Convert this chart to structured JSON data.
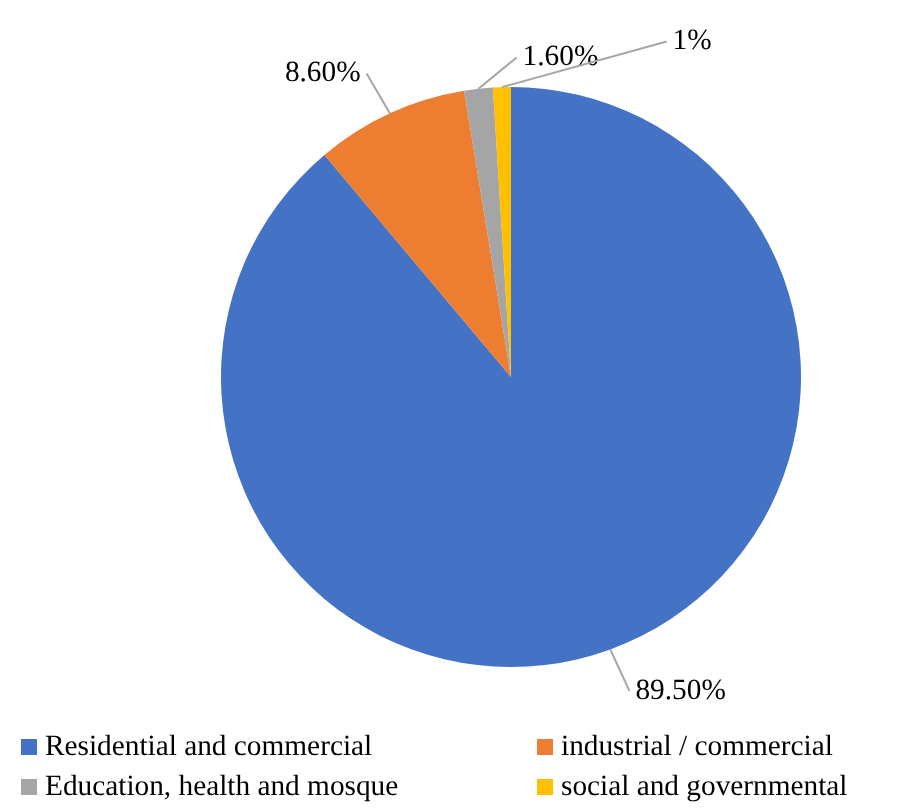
{
  "chart_data": {
    "type": "pie",
    "categories": [
      "Residential and commercial",
      "industrial / commercial",
      "Education, health and mosque",
      "social and governmental"
    ],
    "values": [
      89.5,
      8.6,
      1.6,
      1
    ],
    "colors": [
      "#4472c4",
      "#ed7d31",
      "#a5a5a5",
      "#ffc000"
    ],
    "value_labels": [
      "89.50%",
      "8.60%",
      "1.60%",
      "1%"
    ],
    "legend": "bottom"
  }
}
